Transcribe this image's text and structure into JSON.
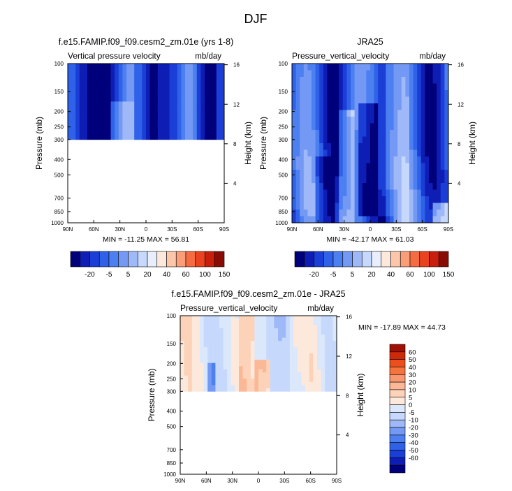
{
  "page": {
    "title": "DJF"
  },
  "colors": {
    "top_palette": [
      "#00007a",
      "#0e1eb4",
      "#1b3ed6",
      "#2f62e8",
      "#4c7ff0",
      "#7499f4",
      "#9fb9f8",
      "#c6d8fb",
      "#e8eefc",
      "#fde8dc",
      "#fcc6aa",
      "#f99e78",
      "#f56c42",
      "#e8421f",
      "#c81e0c",
      "#8a0a04"
    ],
    "diff_palette": [
      "#00007a",
      "#0e1eb4",
      "#1b3ed6",
      "#2f62e8",
      "#4c7ff0",
      "#7499f4",
      "#9fb9f8",
      "#c6d8fb",
      "#dbe8fb",
      "#fde8dc",
      "#fcd2b8",
      "#fbb896",
      "#f99870",
      "#f5743e",
      "#eb4f1e",
      "#cc2a0b",
      "#a01004"
    ]
  },
  "chart_data": [
    {
      "type": "heatmap",
      "title": "f.e15.FAMIP.f09_f09.cesm2_zm.01e (yrs 1-8)",
      "subtitle_left": "Vertical pressure velocity",
      "subtitle_right": "mb/day",
      "xlabel": "",
      "ylabel": "Pressure (mb)",
      "ylabel_right": "Height (km)",
      "x_ticks": [
        "90N",
        "60N",
        "30N",
        "0",
        "30S",
        "60S",
        "90S"
      ],
      "y_ticks": [
        "100",
        "150",
        "200",
        "250",
        "300",
        "400",
        "500",
        "700",
        "850",
        "1000"
      ],
      "y_right_ticks": [
        "16",
        "12",
        "8",
        "4"
      ],
      "stats": "MIN = -11.25  MAX = 56.81",
      "data_levels": [
        100,
        300
      ],
      "colorbar_labels": [
        "-20",
        "-5",
        "5",
        "20",
        "40",
        "60",
        "100",
        "150"
      ]
    },
    {
      "type": "heatmap",
      "title": "JRA25",
      "subtitle_left": "Pressure_vertical_velocity",
      "subtitle_right": "mb/day",
      "xlabel": "",
      "ylabel": "Pressure (mb)",
      "ylabel_right": "Height (km)",
      "x_ticks": [
        "90N",
        "60N",
        "30N",
        "0",
        "30S",
        "60S",
        "90S"
      ],
      "y_ticks": [
        "100",
        "150",
        "200",
        "250",
        "300",
        "400",
        "500",
        "700",
        "850",
        "1000"
      ],
      "y_right_ticks": [
        "16",
        "12",
        "8",
        "4"
      ],
      "stats": "MIN = -42.17  MAX = 61.03",
      "data_levels": [
        100,
        1000
      ],
      "colorbar_labels": [
        "-20",
        "-5",
        "5",
        "20",
        "40",
        "60",
        "100",
        "150"
      ]
    },
    {
      "type": "heatmap",
      "title": "f.e15.FAMIP.f09_f09.cesm2_zm.01e - JRA25",
      "subtitle_left": "Pressure_vertical_velocity",
      "subtitle_right": "mb/day",
      "xlabel": "",
      "ylabel": "Pressure (mb)",
      "ylabel_right": "Height (km)",
      "x_ticks": [
        "90N",
        "60N",
        "30N",
        "0",
        "30S",
        "60S",
        "90S"
      ],
      "y_ticks": [
        "100",
        "150",
        "200",
        "250",
        "300",
        "400",
        "500",
        "700",
        "850",
        "1000"
      ],
      "y_right_ticks": [
        "16",
        "12",
        "8",
        "4"
      ],
      "stats": "MIN = -17.89  MAX = 44.73",
      "data_levels": [
        100,
        300
      ],
      "colorbar_labels": [
        "60",
        "50",
        "40",
        "30",
        "20",
        "10",
        "5",
        "0",
        "-5",
        "-10",
        "-20",
        "-30",
        "-40",
        "-50",
        "-60"
      ]
    }
  ]
}
